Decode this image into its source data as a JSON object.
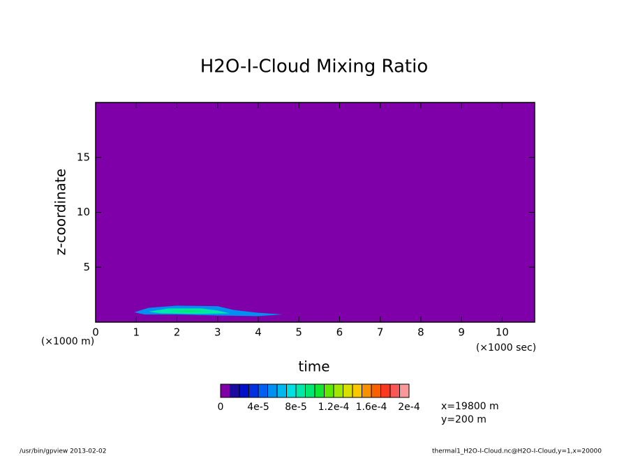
{
  "chart_data": {
    "type": "shaded",
    "title": "H2O-I-Cloud Mixing Ratio",
    "x_label": "time",
    "y_label": "z-coordinate",
    "x_unit": "(×1000 sec)",
    "y_unit": "(×1000 m)",
    "xlim": [
      0,
      10.8
    ],
    "ylim": [
      0,
      20
    ],
    "xticks": [
      0,
      1,
      2,
      3,
      4,
      5,
      6,
      7,
      8,
      9,
      10
    ],
    "yticks": [
      5,
      10,
      15
    ],
    "regions": [
      {
        "value": 5.5e-05,
        "x": [
          0.95,
          1.3,
          2,
          3,
          3.4,
          4,
          4.6,
          4,
          3,
          2,
          1.2
        ],
        "y": [
          0.9,
          1.3,
          1.5,
          1.45,
          1.1,
          0.85,
          0.7,
          0.55,
          0.6,
          0.7,
          0.7
        ]
      },
      {
        "value": 8.5e-05,
        "x": [
          1.3,
          1.8,
          2.6,
          3,
          3.3,
          2.5,
          1.6
        ],
        "y": [
          0.95,
          1.25,
          1.25,
          1.05,
          0.8,
          0.75,
          0.8
        ]
      },
      {
        "value": 9.5e-05,
        "x": [
          1.8,
          2.3,
          2.8,
          2.3
        ],
        "y": [
          1.0,
          1.1,
          1.0,
          0.9
        ]
      }
    ],
    "colorbar": {
      "levels": [
        0,
        1e-05,
        2e-05,
        3e-05,
        4e-05,
        5e-05,
        6e-05,
        7e-05,
        8e-05,
        9e-05,
        0.0001,
        0.00011,
        0.00012,
        0.00013,
        0.00014,
        0.00015,
        0.00016,
        0.00017,
        0.00018,
        0.00019,
        0.0002
      ],
      "colors": [
        "#7f00a8",
        "#1a0aa0",
        "#0010c8",
        "#0030e0",
        "#0060f0",
        "#0090f0",
        "#00b8f0",
        "#00e0e0",
        "#00e8a8",
        "#00e870",
        "#10e830",
        "#60e800",
        "#a0e800",
        "#d8e000",
        "#f8c800",
        "#f89000",
        "#f86000",
        "#f83820",
        "#f85858",
        "#f89898"
      ],
      "ticks": [
        0,
        {
          "value": 4e-05,
          "label": "4e-5"
        },
        {
          "value": 8e-05,
          "label": "8e-5"
        },
        {
          "value": 0.00012,
          "label": "1.2e-4"
        },
        {
          "value": 0.00016,
          "label": "1.6e-4"
        },
        {
          "value": 0.0002,
          "label": "2e-4"
        }
      ]
    },
    "annotations": [
      "x=19800 m",
      "y=200 m"
    ],
    "footer_left": "/usr/bin/gpview  2013-02-02",
    "footer_right": "thermal1_H2O-I-Cloud.nc@H2O-I-Cloud,y=1,x=20000"
  }
}
